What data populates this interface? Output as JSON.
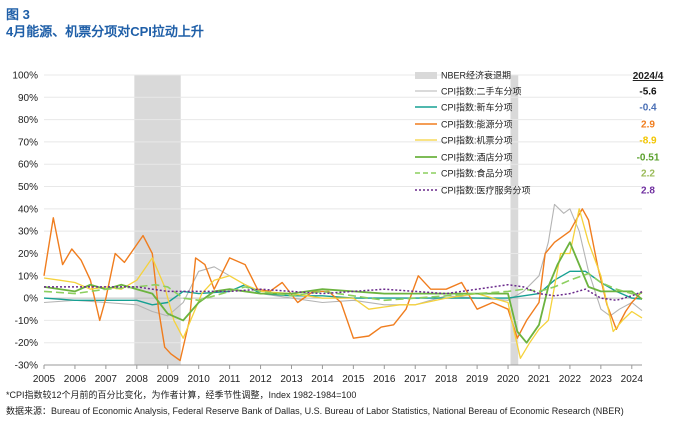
{
  "header": {
    "figure_label": "图 3",
    "title": "4月能源、机票分项对CPI拉动上升"
  },
  "footnote": "*CPI指数较12个月前的百分比变化，为作者计算，经季节性调整，Index 1982-1984=100",
  "source": "数据来源：Bureau of Economic Analysis, Federal Reserve Bank of Dallas, U.S. Bureau of Labor Statistics, National Bereau of Economic Research (NBER)",
  "chart_data": {
    "type": "line",
    "x_ticks": [
      "2005",
      "2006",
      "2007",
      "2008",
      "2009",
      "2010",
      "2011",
      "2012",
      "2013",
      "2014",
      "2015",
      "2016",
      "2017",
      "2018",
      "2019",
      "2020",
      "2021",
      "2022",
      "2023",
      "2024"
    ],
    "y_ticks": [
      "100%",
      "90%",
      "80%",
      "70%",
      "60%",
      "50%",
      "40%",
      "30%",
      "20%",
      "10%",
      "0%",
      "-10%",
      "-20%",
      "-30%"
    ],
    "ylim": [
      -30,
      100
    ],
    "xlim": [
      2005,
      2024.33
    ],
    "recessions": [
      {
        "start": 2007.92,
        "end": 2009.42
      },
      {
        "start": 2020.08,
        "end": 2020.33
      }
    ],
    "legend_header": "2024/4",
    "legend_items": [
      {
        "key": "nber",
        "label": "NBER经济衰退期",
        "value": ""
      },
      {
        "key": "used_cars",
        "label": "CPI指数:二手车分项",
        "value": "-5.6"
      },
      {
        "key": "new_cars",
        "label": "CPI指数:新车分项",
        "value": "-0.4"
      },
      {
        "key": "energy",
        "label": "CPI指数:能源分项",
        "value": "2.9"
      },
      {
        "key": "airfare",
        "label": "CPI指数:机票分项",
        "value": "-8.9"
      },
      {
        "key": "hotel",
        "label": "CPI指数:酒店分项",
        "value": "-0.51"
      },
      {
        "key": "food",
        "label": "CPI指数:食品分项",
        "value": "2.2"
      },
      {
        "key": "medical",
        "label": "CPI指数:医疗服务分项",
        "value": "2.8"
      }
    ],
    "colors": {
      "used_cars": "#b4b4b4",
      "new_cars": "#16a093",
      "energy": "#f07d1e",
      "airfare": "#f5d23c",
      "hotel": "#6cb33f",
      "food": "#8ccf5f",
      "medical": "#6a2a8c",
      "nber": "#d9d9d9",
      "val_used_cars": "#111111",
      "val_new_cars": "#4a6fb5",
      "val_energy": "#f07d1e",
      "val_airfare": "#f2c500",
      "val_hotel": "#5aa02c",
      "val_food": "#9bbb59",
      "val_medical": "#7030a0"
    },
    "series": [
      {
        "key": "used_cars",
        "name": "CPI指数:二手车分项",
        "x": [
          2005,
          2006,
          2007,
          2008,
          2008.5,
          2009,
          2009.5,
          2010,
          2010.5,
          2011,
          2011.5,
          2012,
          2013,
          2014,
          2015,
          2016,
          2017,
          2018,
          2019,
          2020,
          2020.5,
          2021,
          2021.3,
          2021.5,
          2021.8,
          2022,
          2022.3,
          2022.6,
          2023,
          2023.3,
          2023.6,
          2024,
          2024.33
        ],
        "y": [
          -2,
          -1,
          -2,
          -3,
          -6,
          -8,
          -2,
          12,
          14,
          10,
          6,
          2,
          0,
          -2,
          -1,
          -3,
          -3,
          1,
          0,
          -1,
          3,
          10,
          25,
          42,
          38,
          40,
          30,
          12,
          -5,
          -8,
          -5,
          -2,
          -5.6
        ]
      },
      {
        "key": "new_cars",
        "name": "CPI指数:新车分项",
        "x": [
          2005,
          2006,
          2007,
          2008,
          2008.5,
          2009,
          2009.5,
          2010,
          2011,
          2011.5,
          2012,
          2013,
          2014,
          2015,
          2016,
          2017,
          2018,
          2019,
          2020,
          2020.5,
          2021,
          2021.5,
          2022,
          2022.5,
          2023,
          2023.5,
          2024,
          2024.33
        ],
        "y": [
          0,
          -1,
          -1,
          -1,
          -3,
          -2,
          3,
          2,
          3,
          6,
          2,
          1,
          1,
          0,
          0,
          0,
          0,
          0,
          0,
          1,
          2,
          8,
          12,
          12,
          7,
          3,
          0,
          -0.4
        ]
      },
      {
        "key": "energy",
        "name": "CPI指数:能源分项",
        "x": [
          2005,
          2005.3,
          2005.6,
          2005.9,
          2006.2,
          2006.5,
          2006.8,
          2007,
          2007.3,
          2007.6,
          2007.9,
          2008.2,
          2008.5,
          2008.7,
          2008.9,
          2009.1,
          2009.4,
          2009.7,
          2009.9,
          2010.2,
          2010.5,
          2011,
          2011.5,
          2011.9,
          2012.3,
          2012.7,
          2013.2,
          2013.7,
          2014.2,
          2014.6,
          2015,
          2015.5,
          2015.9,
          2016.3,
          2016.7,
          2017.1,
          2017.5,
          2018,
          2018.5,
          2019,
          2019.5,
          2020,
          2020.3,
          2020.6,
          2021,
          2021.2,
          2021.5,
          2022,
          2022.4,
          2022.6,
          2022.9,
          2023.2,
          2023.5,
          2023.8,
          2024,
          2024.33
        ],
        "y": [
          10,
          36,
          15,
          22,
          17,
          8,
          -10,
          0,
          20,
          16,
          22,
          28,
          20,
          -5,
          -22,
          -25,
          -28,
          -10,
          18,
          15,
          4,
          18,
          15,
          4,
          3,
          7,
          -2,
          3,
          3,
          -2,
          -18,
          -17,
          -13,
          -12,
          -5,
          10,
          4,
          4,
          7,
          -5,
          -2,
          -5,
          -18,
          -10,
          -2,
          20,
          25,
          30,
          40,
          35,
          14,
          -3,
          -14,
          -6,
          -2,
          2.9
        ]
      },
      {
        "key": "airfare",
        "name": "CPI指数:机票分项",
        "x": [
          2005,
          2005.5,
          2006,
          2006.5,
          2007,
          2007.5,
          2008,
          2008.5,
          2008.9,
          2009.2,
          2009.5,
          2009.8,
          2010.1,
          2010.5,
          2011,
          2011.5,
          2012,
          2013,
          2014,
          2015,
          2015.5,
          2016,
          2016.5,
          2017,
          2018,
          2019,
          2020,
          2020.2,
          2020.4,
          2020.7,
          2021,
          2021.3,
          2021.7,
          2022,
          2022.3,
          2022.6,
          2023,
          2023.4,
          2023.7,
          2024,
          2024.33
        ],
        "y": [
          9,
          8,
          7,
          4,
          5,
          4,
          8,
          18,
          5,
          -10,
          -18,
          -8,
          2,
          8,
          10,
          6,
          3,
          2,
          0,
          0,
          -5,
          -4,
          -3,
          -3,
          0,
          2,
          -2,
          -15,
          -27,
          -20,
          -14,
          -10,
          20,
          20,
          40,
          25,
          10,
          -15,
          -10,
          -6,
          -8.9
        ]
      },
      {
        "key": "hotel",
        "name": "CPI指数:酒店分项",
        "x": [
          2005,
          2006,
          2006.5,
          2007,
          2007.5,
          2008,
          2008.5,
          2009,
          2009.5,
          2010,
          2010.5,
          2011,
          2012,
          2013,
          2014,
          2015,
          2016,
          2017,
          2018,
          2019,
          2020,
          2020.3,
          2020.6,
          2021,
          2021.3,
          2021.6,
          2022,
          2022.3,
          2022.6,
          2023,
          2023.5,
          2024,
          2024.33
        ],
        "y": [
          5,
          3,
          6,
          4,
          6,
          4,
          2,
          -7,
          -10,
          -2,
          3,
          4,
          2,
          2,
          4,
          3,
          2,
          2,
          2,
          2,
          2,
          -15,
          -20,
          -12,
          5,
          15,
          25,
          15,
          5,
          3,
          3,
          3,
          -0.51
        ]
      },
      {
        "key": "food",
        "name": "CPI指数:食品分项",
        "x": [
          2005,
          2006,
          2007,
          2008,
          2008.6,
          2009,
          2009.5,
          2010,
          2011,
          2011.5,
          2012,
          2013,
          2014,
          2015,
          2016,
          2017,
          2018,
          2019,
          2020,
          2020.5,
          2021,
          2021.5,
          2022,
          2022.6,
          2023,
          2023.5,
          2024,
          2024.33
        ],
        "y": [
          3,
          2,
          4,
          5,
          6,
          5,
          0,
          -1,
          3,
          5,
          3,
          1,
          3,
          1,
          -1,
          0,
          1,
          2,
          3,
          4,
          3,
          5,
          8,
          11,
          7,
          4,
          2,
          2.2
        ]
      },
      {
        "key": "medical",
        "name": "CPI指数:医疗服务分项",
        "x": [
          2005,
          2006,
          2007,
          2008,
          2009,
          2010,
          2011,
          2012,
          2013,
          2014,
          2015,
          2016,
          2017,
          2018,
          2019,
          2020,
          2020.5,
          2021,
          2021.5,
          2022,
          2022.5,
          2023,
          2023.5,
          2024,
          2024.33
        ],
        "y": [
          5,
          5,
          5,
          5,
          3,
          3,
          3,
          4,
          3,
          2,
          3,
          4,
          3,
          2,
          4,
          6,
          5,
          2,
          1,
          2,
          4,
          0,
          -1,
          1,
          2.8
        ]
      }
    ]
  }
}
